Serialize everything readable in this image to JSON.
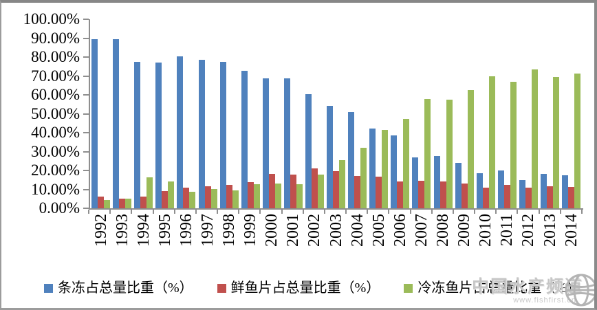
{
  "chart_data": {
    "type": "bar",
    "title": "",
    "categories": [
      "1992",
      "1993",
      "1994",
      "1995",
      "1996",
      "1997",
      "1998",
      "1999",
      "2000",
      "2001",
      "2002",
      "2003",
      "2004",
      "2005",
      "2006",
      "2007",
      "2008",
      "2009",
      "2010",
      "2011",
      "2012",
      "2013",
      "2014"
    ],
    "series": [
      {
        "name": "条冻占总量比重（%）",
        "color": "#4F81BD",
        "values": [
          89.4,
          89.4,
          77.5,
          77.0,
          80.2,
          78.4,
          77.3,
          72.7,
          68.6,
          68.6,
          60.5,
          54.3,
          51.0,
          42.0,
          38.5,
          26.9,
          27.8,
          24.0,
          18.7,
          20.0,
          15.0,
          18.0,
          17.3
        ]
      },
      {
        "name": "鲜鱼片占总量比重（%）",
        "color": "#C0504D",
        "values": [
          6.3,
          5.2,
          6.0,
          9.0,
          10.8,
          11.6,
          12.4,
          13.8,
          18.2,
          17.8,
          21.0,
          19.8,
          17.0,
          16.6,
          14.3,
          14.7,
          14.3,
          13.0,
          10.8,
          12.2,
          10.8,
          11.8,
          11.1
        ]
      },
      {
        "name": "冷冻鱼片占总量比重（%）",
        "color": "#9BBB59",
        "values": [
          4.2,
          5.2,
          16.3,
          14.0,
          8.6,
          10.0,
          9.3,
          12.9,
          13.0,
          12.8,
          17.8,
          25.3,
          32.0,
          41.6,
          47.3,
          57.7,
          57.5,
          62.4,
          69.9,
          66.9,
          73.3,
          69.5,
          71.1
        ]
      }
    ],
    "xlabel": "",
    "ylabel": "",
    "ylim": [
      0,
      100
    ],
    "ytick_step": 10,
    "ytick_labels": [
      "100.00%",
      "90.00%",
      "80.00%",
      "70.00%",
      "60.00%",
      "50.00%",
      "40.00%",
      "30.00%",
      "20.00%",
      "10.00%",
      "0.00%"
    ],
    "grid": false,
    "legend_position": "bottom",
    "x_label_rotation": 90
  },
  "watermark": {
    "line1": "中国水产频道",
    "line2": "www.fishfirst.cn",
    "icon": "globe-icon"
  },
  "colors": {
    "bar_blue": "#4F81BD",
    "bar_red": "#C0504D",
    "bar_green": "#9BBB59",
    "axis": "#8E8E8E",
    "watermark_gray": "#C6C6C6",
    "frame_gray": "#8A8A8A",
    "background": "#FFFFFF"
  }
}
